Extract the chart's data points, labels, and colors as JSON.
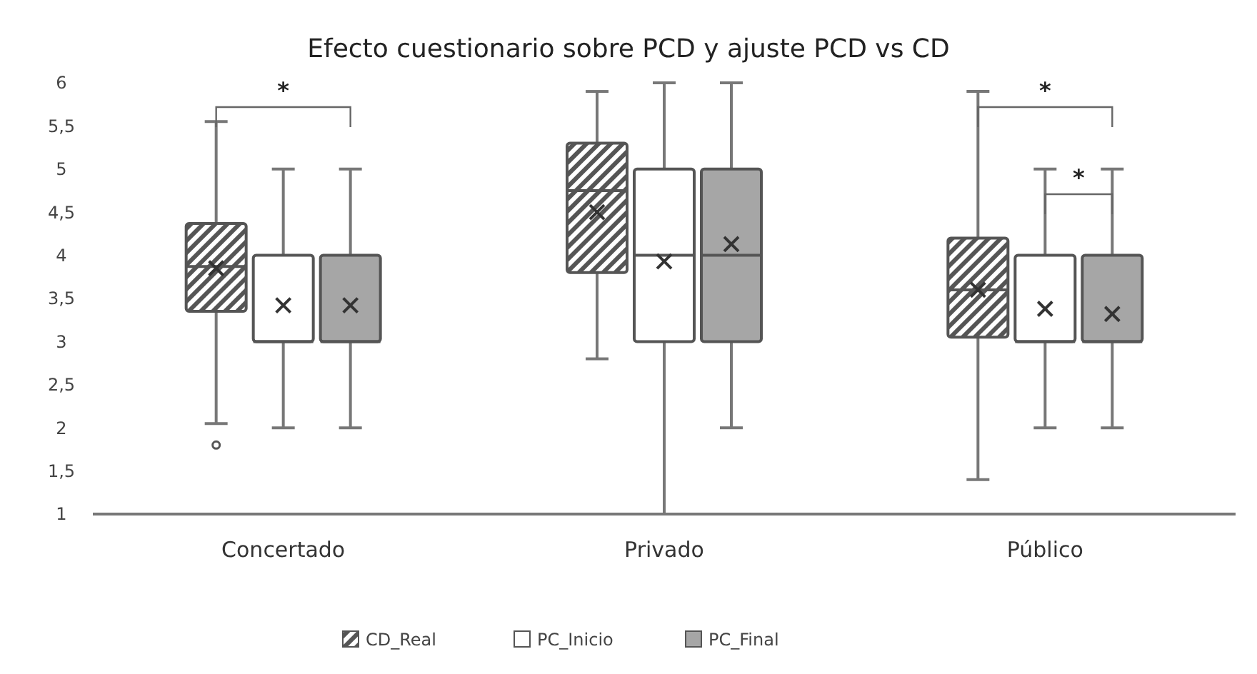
{
  "chart_data": {
    "type": "box",
    "title": "Efecto cuestionario sobre PCD y ajuste PCD vs CD",
    "categories": [
      "Concertado",
      "Privado",
      "Público"
    ],
    "ylim": [
      1,
      6
    ],
    "yticks": [
      1,
      {
        "value": 1.5,
        "label": "1,5"
      },
      2,
      {
        "value": 2.5,
        "label": "2,5"
      },
      3,
      {
        "value": 3.5,
        "label": "3,5"
      },
      4,
      {
        "value": 4.5,
        "label": "4,5"
      },
      5,
      {
        "value": 5.5,
        "label": "5,5"
      },
      6
    ],
    "grid": false,
    "legend": "bottom",
    "series": [
      {
        "name": "CD_Real",
        "color": "#555555",
        "boxes": [
          {
            "low": 2.05,
            "q1": 3.35,
            "median": 3.87,
            "q3": 4.37,
            "high": 5.55,
            "mean": 3.85,
            "outliers": [
              1.8
            ]
          },
          {
            "low": 2.8,
            "q1": 3.8,
            "median": 4.75,
            "q3": 5.3,
            "high": 5.9,
            "mean": 4.5
          },
          {
            "low": 1.4,
            "q1": 3.05,
            "median": 3.6,
            "q3": 4.2,
            "high": 5.9,
            "mean": 3.6
          }
        ]
      },
      {
        "name": "PC_Inicio",
        "color": "#ffffff",
        "boxes": [
          {
            "low": 2,
            "q1": 3,
            "median": 3,
            "q3": 4,
            "high": 5,
            "mean": 3.42
          },
          {
            "low": 1,
            "q1": 3,
            "median": 4,
            "q3": 5,
            "high": 6,
            "mean": 3.93
          },
          {
            "low": 2,
            "q1": 3,
            "median": 3,
            "q3": 4,
            "high": 5,
            "mean": 3.38
          }
        ]
      },
      {
        "name": "PC_Final",
        "color": "#a6a6a6",
        "boxes": [
          {
            "low": 2,
            "q1": 3,
            "median": 3,
            "q3": 4,
            "high": 5,
            "mean": 3.42
          },
          {
            "low": 2,
            "q1": 3,
            "median": 4,
            "q3": 5,
            "high": 6,
            "mean": 4.13
          },
          {
            "low": 2,
            "q1": 3,
            "median": 3,
            "q3": 4,
            "high": 5,
            "mean": 3.32
          }
        ]
      }
    ],
    "annotations": [
      "*",
      "*",
      "*"
    ]
  }
}
